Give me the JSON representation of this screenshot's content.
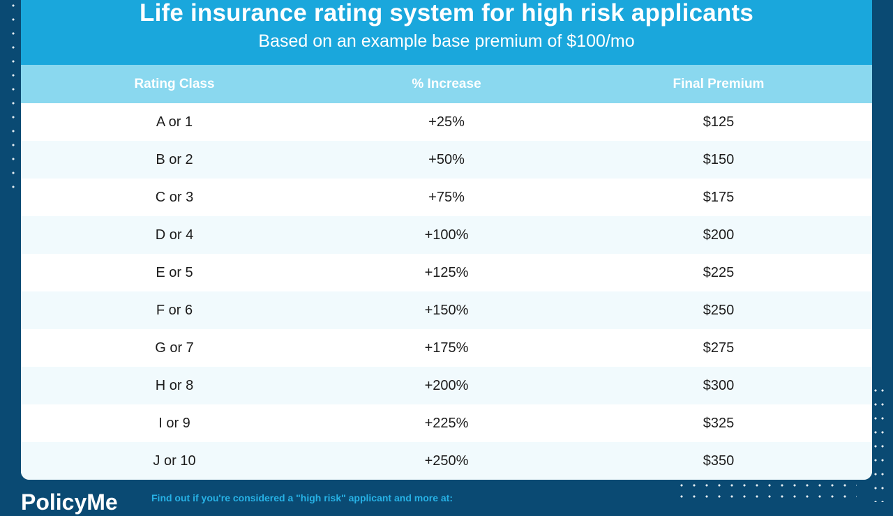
{
  "header": {
    "title": "Life insurance rating system for high risk applicants",
    "subtitle": "Based on an example base premium of $100/mo"
  },
  "table": {
    "columns": [
      "Rating Class",
      "% Increase",
      "Final Premium"
    ],
    "rows": [
      [
        "A or 1",
        "+25%",
        "$125"
      ],
      [
        "B or 2",
        "+50%",
        "$150"
      ],
      [
        "C or 3",
        "+75%",
        "$175"
      ],
      [
        "D or 4",
        "+100%",
        "$200"
      ],
      [
        "E or 5",
        "+125%",
        "$225"
      ],
      [
        "F or 6",
        "+150%",
        "$250"
      ],
      [
        "G or 7",
        "+175%",
        "$275"
      ],
      [
        "H or 8",
        "+200%",
        "$300"
      ],
      [
        "I or 9",
        "+225%",
        "$325"
      ],
      [
        "J or 10",
        "+250%",
        "$350"
      ]
    ]
  },
  "footer": {
    "logo_text": "PolicyMe",
    "text": "Find out if you're considered a \"high risk\" applicant and more at:"
  },
  "colors": {
    "background": "#0a4a73",
    "header": "#1aa7dc",
    "table_header": "#8ad8ef",
    "alt_row": "#f1fafd"
  }
}
